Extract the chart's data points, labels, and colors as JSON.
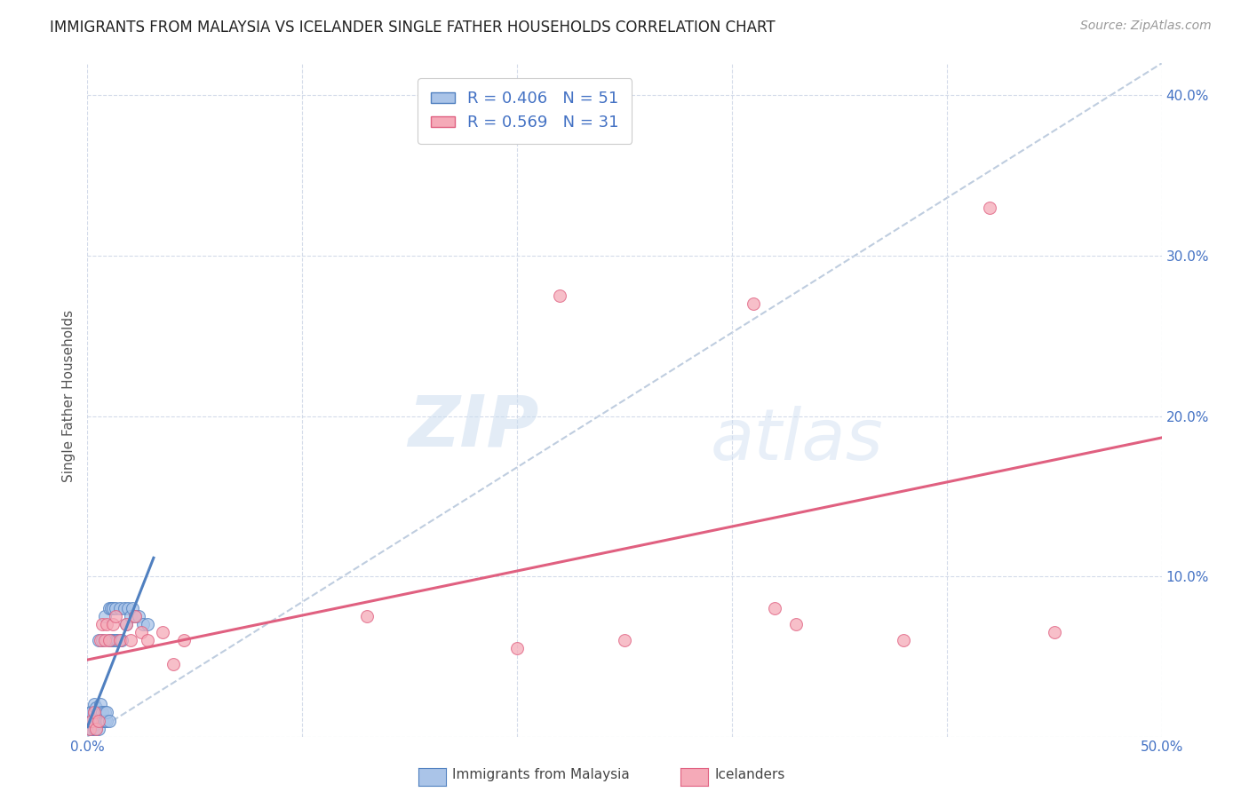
{
  "title": "IMMIGRANTS FROM MALAYSIA VS ICELANDER SINGLE FATHER HOUSEHOLDS CORRELATION CHART",
  "source": "Source: ZipAtlas.com",
  "ylabel": "Single Father Households",
  "xlim": [
    0.0,
    0.5
  ],
  "ylim": [
    0.0,
    0.42
  ],
  "x_ticks": [
    0.0,
    0.1,
    0.2,
    0.3,
    0.4,
    0.5
  ],
  "y_ticks": [
    0.0,
    0.1,
    0.2,
    0.3,
    0.4
  ],
  "x_tick_labels_show": [
    "0.0%",
    "",
    "",
    "",
    "",
    "50.0%"
  ],
  "y_tick_labels_show": [
    "",
    "10.0%",
    "20.0%",
    "30.0%",
    "40.0%"
  ],
  "legend_label1": "Immigrants from Malaysia",
  "legend_label2": "Icelanders",
  "r1": 0.406,
  "n1": 51,
  "r2": 0.569,
  "n2": 31,
  "color_blue": "#aac4e8",
  "color_pink": "#f5aab8",
  "line_blue": "#5080c0",
  "line_pink": "#e06080",
  "diagonal_color": "#b8c8dc",
  "blue_scatter_x": [
    0.001,
    0.001,
    0.001,
    0.002,
    0.002,
    0.002,
    0.003,
    0.003,
    0.003,
    0.003,
    0.004,
    0.004,
    0.004,
    0.004,
    0.005,
    0.005,
    0.005,
    0.005,
    0.006,
    0.006,
    0.006,
    0.007,
    0.007,
    0.007,
    0.008,
    0.008,
    0.008,
    0.009,
    0.009,
    0.01,
    0.01,
    0.01,
    0.011,
    0.011,
    0.012,
    0.012,
    0.013,
    0.013,
    0.014,
    0.015,
    0.015,
    0.016,
    0.017,
    0.018,
    0.019,
    0.02,
    0.021,
    0.022,
    0.024,
    0.026,
    0.028
  ],
  "blue_scatter_y": [
    0.005,
    0.01,
    0.015,
    0.005,
    0.01,
    0.015,
    0.005,
    0.01,
    0.015,
    0.02,
    0.005,
    0.008,
    0.012,
    0.018,
    0.005,
    0.01,
    0.015,
    0.06,
    0.01,
    0.015,
    0.02,
    0.01,
    0.015,
    0.06,
    0.01,
    0.015,
    0.075,
    0.01,
    0.015,
    0.01,
    0.06,
    0.08,
    0.06,
    0.08,
    0.06,
    0.08,
    0.06,
    0.08,
    0.06,
    0.06,
    0.08,
    0.06,
    0.08,
    0.07,
    0.08,
    0.075,
    0.08,
    0.075,
    0.075,
    0.07,
    0.07
  ],
  "pink_scatter_x": [
    0.001,
    0.002,
    0.003,
    0.004,
    0.005,
    0.006,
    0.007,
    0.008,
    0.009,
    0.01,
    0.012,
    0.013,
    0.015,
    0.018,
    0.02,
    0.022,
    0.025,
    0.028,
    0.035,
    0.04,
    0.045,
    0.13,
    0.2,
    0.22,
    0.25,
    0.31,
    0.32,
    0.33,
    0.38,
    0.42,
    0.45
  ],
  "pink_scatter_y": [
    0.005,
    0.01,
    0.015,
    0.005,
    0.01,
    0.06,
    0.07,
    0.06,
    0.07,
    0.06,
    0.07,
    0.075,
    0.06,
    0.07,
    0.06,
    0.075,
    0.065,
    0.06,
    0.065,
    0.045,
    0.06,
    0.075,
    0.055,
    0.275,
    0.06,
    0.27,
    0.08,
    0.07,
    0.06,
    0.33,
    0.065
  ],
  "watermark_zip": "ZIP",
  "watermark_atlas": "atlas",
  "background_color": "#ffffff",
  "grid_color": "#d0d8e8",
  "title_fontsize": 12,
  "source_fontsize": 10,
  "tick_fontsize": 11,
  "ylabel_fontsize": 11
}
